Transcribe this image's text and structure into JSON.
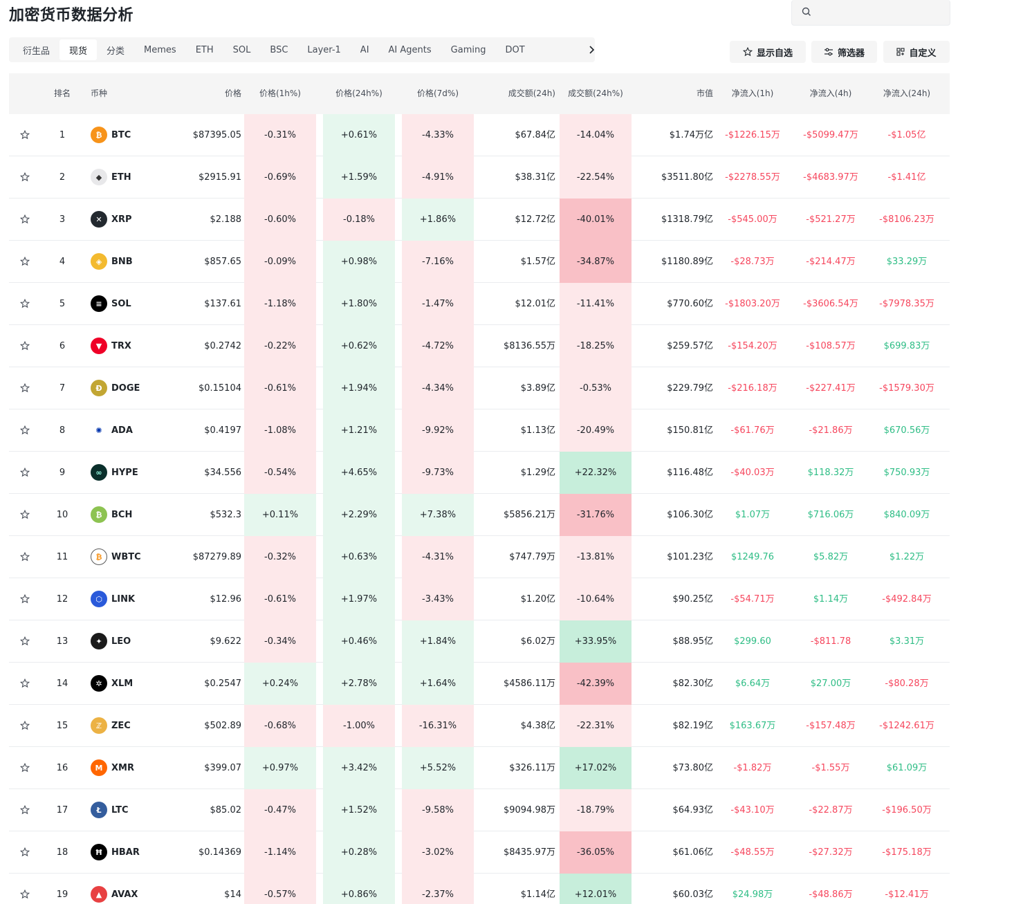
{
  "page": {
    "title": "加密货币数据分析"
  },
  "search": {
    "placeholder": ""
  },
  "tabs": [
    "衍生品",
    "现货",
    "分类",
    "Memes",
    "ETH",
    "SOL",
    "BSC",
    "Layer-1",
    "AI",
    "AI Agents",
    "Gaming",
    "DOT"
  ],
  "active_tab": "现货",
  "actions": {
    "watchlist": "显示自选",
    "filter": "筛选器",
    "customize": "自定义"
  },
  "columns": {
    "rank": "排名",
    "coin": "币种",
    "price": "价格",
    "chg1h": "价格(1h%)",
    "chg24h": "价格(24h%)",
    "chg7d": "价格(7d%)",
    "vol24h": "成交额(24h)",
    "volchg24h": "成交额(24h%)",
    "mcap": "市值",
    "flow1h": "净流入(1h)",
    "flow4h": "净流入(4h)",
    "flow24h": "净流入(24h)"
  },
  "colors": {
    "red": "#f6465d",
    "green": "#2ebd85",
    "red_bg_light": "#fde8ea",
    "red_bg_strong": "#f9c0c6",
    "green_bg_light": "#e6f7ee",
    "green_bg_strong": "#c7eedb"
  },
  "rows": [
    {
      "rank": "1",
      "symbol": "BTC",
      "icon": "bitcoin-icon",
      "icon_color": "#f7931a",
      "glyph": "₿",
      "price": "$87395.05",
      "chg1h": "-0.31%",
      "chg24h": "+0.61%",
      "chg7d": "-4.33%",
      "vol": "$67.84亿",
      "volchg": "-14.04%",
      "mcap": "$1.74万亿",
      "f1h": "-$1226.15万",
      "f4h": "-$5099.47万",
      "f24h": "-$1.05亿"
    },
    {
      "rank": "2",
      "symbol": "ETH",
      "icon": "ethereum-icon",
      "icon_color": "#e8e8ea",
      "glyph": "◆",
      "price": "$2915.91",
      "chg1h": "-0.69%",
      "chg24h": "+1.59%",
      "chg7d": "-4.91%",
      "vol": "$38.31亿",
      "volchg": "-22.54%",
      "mcap": "$3511.80亿",
      "f1h": "-$2278.55万",
      "f4h": "-$4683.97万",
      "f24h": "-$1.41亿"
    },
    {
      "rank": "3",
      "symbol": "XRP",
      "icon": "xrp-icon",
      "icon_color": "#23292f",
      "glyph": "✕",
      "price": "$2.188",
      "chg1h": "-0.60%",
      "chg24h": "-0.18%",
      "chg7d": "+1.86%",
      "vol": "$12.72亿",
      "volchg": "-40.01%",
      "mcap": "$1318.79亿",
      "f1h": "-$545.00万",
      "f4h": "-$521.27万",
      "f24h": "-$8106.23万"
    },
    {
      "rank": "4",
      "symbol": "BNB",
      "icon": "bnb-icon",
      "icon_color": "#f3ba2f",
      "glyph": "◈",
      "price": "$857.65",
      "chg1h": "-0.09%",
      "chg24h": "+0.98%",
      "chg7d": "-7.16%",
      "vol": "$1.57亿",
      "volchg": "-34.87%",
      "mcap": "$1180.89亿",
      "f1h": "-$28.73万",
      "f4h": "-$214.47万",
      "f24h": "$33.29万"
    },
    {
      "rank": "5",
      "symbol": "SOL",
      "icon": "solana-icon",
      "icon_color": "#000000",
      "glyph": "≡",
      "price": "$137.61",
      "chg1h": "-1.18%",
      "chg24h": "+1.80%",
      "chg7d": "-1.47%",
      "vol": "$12.01亿",
      "volchg": "-11.41%",
      "mcap": "$770.60亿",
      "f1h": "-$1803.20万",
      "f4h": "-$3606.54万",
      "f24h": "-$7978.35万"
    },
    {
      "rank": "6",
      "symbol": "TRX",
      "icon": "tron-icon",
      "icon_color": "#ef0027",
      "glyph": "▼",
      "price": "$0.2742",
      "chg1h": "-0.22%",
      "chg24h": "+0.62%",
      "chg7d": "-4.72%",
      "vol": "$8136.55万",
      "volchg": "-18.25%",
      "mcap": "$259.57亿",
      "f1h": "-$154.20万",
      "f4h": "-$108.57万",
      "f24h": "$699.83万"
    },
    {
      "rank": "7",
      "symbol": "DOGE",
      "icon": "doge-icon",
      "icon_color": "#c2a633",
      "glyph": "Ð",
      "price": "$0.15104",
      "chg1h": "-0.61%",
      "chg24h": "+1.94%",
      "chg7d": "-4.34%",
      "vol": "$3.89亿",
      "volchg": "-0.53%",
      "mcap": "$229.79亿",
      "f1h": "-$216.18万",
      "f4h": "-$227.41万",
      "f24h": "-$1579.30万"
    },
    {
      "rank": "8",
      "symbol": "ADA",
      "icon": "cardano-icon",
      "icon_color": "#ffffff",
      "glyph": "✺",
      "price": "$0.4197",
      "chg1h": "-1.08%",
      "chg24h": "+1.21%",
      "chg7d": "-9.92%",
      "vol": "$1.13亿",
      "volchg": "-20.49%",
      "mcap": "$150.81亿",
      "f1h": "-$61.76万",
      "f4h": "-$21.86万",
      "f24h": "$670.56万"
    },
    {
      "rank": "9",
      "symbol": "HYPE",
      "icon": "hyperliquid-icon",
      "icon_color": "#0a2f2b",
      "glyph": "∞",
      "price": "$34.556",
      "chg1h": "-0.54%",
      "chg24h": "+4.65%",
      "chg7d": "-9.73%",
      "vol": "$1.29亿",
      "volchg": "+22.32%",
      "mcap": "$116.48亿",
      "f1h": "-$40.03万",
      "f4h": "$118.32万",
      "f24h": "$750.93万"
    },
    {
      "rank": "10",
      "symbol": "BCH",
      "icon": "bitcoin-cash-icon",
      "icon_color": "#8dc351",
      "glyph": "₿",
      "price": "$532.3",
      "chg1h": "+0.11%",
      "chg24h": "+2.29%",
      "chg7d": "+7.38%",
      "vol": "$5856.21万",
      "volchg": "-31.76%",
      "mcap": "$106.30亿",
      "f1h": "$1.07万",
      "f4h": "$716.06万",
      "f24h": "$840.09万"
    },
    {
      "rank": "11",
      "symbol": "WBTC",
      "icon": "wbtc-icon",
      "icon_color": "#ffffff",
      "glyph": "₿",
      "price": "$87279.89",
      "chg1h": "-0.32%",
      "chg24h": "+0.63%",
      "chg7d": "-4.31%",
      "vol": "$747.79万",
      "volchg": "-13.81%",
      "mcap": "$101.23亿",
      "f1h": "$1249.76",
      "f4h": "$5.82万",
      "f24h": "$1.22万"
    },
    {
      "rank": "12",
      "symbol": "LINK",
      "icon": "chainlink-icon",
      "icon_color": "#2a5ada",
      "glyph": "⬡",
      "price": "$12.96",
      "chg1h": "-0.61%",
      "chg24h": "+1.97%",
      "chg7d": "-3.43%",
      "vol": "$1.20亿",
      "volchg": "-10.64%",
      "mcap": "$90.25亿",
      "f1h": "-$54.71万",
      "f4h": "$1.14万",
      "f24h": "-$492.84万"
    },
    {
      "rank": "13",
      "symbol": "LEO",
      "icon": "leo-icon",
      "icon_color": "#1a1a1a",
      "glyph": "✦",
      "price": "$9.622",
      "chg1h": "-0.34%",
      "chg24h": "+0.46%",
      "chg7d": "+1.84%",
      "vol": "$6.02万",
      "volchg": "+33.95%",
      "mcap": "$88.95亿",
      "f1h": "$299.60",
      "f4h": "-$811.78",
      "f24h": "$3.31万"
    },
    {
      "rank": "14",
      "symbol": "XLM",
      "icon": "stellar-icon",
      "icon_color": "#000000",
      "glyph": "✲",
      "price": "$0.2547",
      "chg1h": "+0.24%",
      "chg24h": "+2.78%",
      "chg7d": "+1.64%",
      "vol": "$4586.11万",
      "volchg": "-42.39%",
      "mcap": "$82.30亿",
      "f1h": "$6.64万",
      "f4h": "$27.00万",
      "f24h": "-$80.28万"
    },
    {
      "rank": "15",
      "symbol": "ZEC",
      "icon": "zcash-icon",
      "icon_color": "#ecb244",
      "glyph": "ℤ",
      "price": "$502.89",
      "chg1h": "-0.68%",
      "chg24h": "-1.00%",
      "chg7d": "-16.31%",
      "vol": "$4.38亿",
      "volchg": "-22.31%",
      "mcap": "$82.19亿",
      "f1h": "$163.67万",
      "f4h": "-$157.48万",
      "f24h": "-$1242.61万"
    },
    {
      "rank": "16",
      "symbol": "XMR",
      "icon": "monero-icon",
      "icon_color": "#ff6600",
      "glyph": "M",
      "price": "$399.07",
      "chg1h": "+0.97%",
      "chg24h": "+3.42%",
      "chg7d": "+5.52%",
      "vol": "$326.11万",
      "volchg": "+17.02%",
      "mcap": "$73.80亿",
      "f1h": "-$1.82万",
      "f4h": "-$1.55万",
      "f24h": "$61.09万"
    },
    {
      "rank": "17",
      "symbol": "LTC",
      "icon": "litecoin-icon",
      "icon_color": "#345d9d",
      "glyph": "Ł",
      "price": "$85.02",
      "chg1h": "-0.47%",
      "chg24h": "+1.52%",
      "chg7d": "-9.58%",
      "vol": "$9094.98万",
      "volchg": "-18.79%",
      "mcap": "$64.93亿",
      "f1h": "-$43.10万",
      "f4h": "-$22.87万",
      "f24h": "-$196.50万"
    },
    {
      "rank": "18",
      "symbol": "HBAR",
      "icon": "hedera-icon",
      "icon_color": "#000000",
      "glyph": "Ħ",
      "price": "$0.14369",
      "chg1h": "-1.14%",
      "chg24h": "+0.28%",
      "chg7d": "-3.02%",
      "vol": "$8435.97万",
      "volchg": "-36.05%",
      "mcap": "$61.06亿",
      "f1h": "-$48.55万",
      "f4h": "-$27.32万",
      "f24h": "-$175.18万"
    },
    {
      "rank": "19",
      "symbol": "AVAX",
      "icon": "avalanche-icon",
      "icon_color": "#e84142",
      "glyph": "▲",
      "price": "$14",
      "chg1h": "-0.57%",
      "chg24h": "+0.86%",
      "chg7d": "-2.37%",
      "vol": "$1.14亿",
      "volchg": "+12.01%",
      "mcap": "$60.03亿",
      "f1h": "$24.98万",
      "f4h": "-$48.86万",
      "f24h": "-$12.41万"
    }
  ]
}
